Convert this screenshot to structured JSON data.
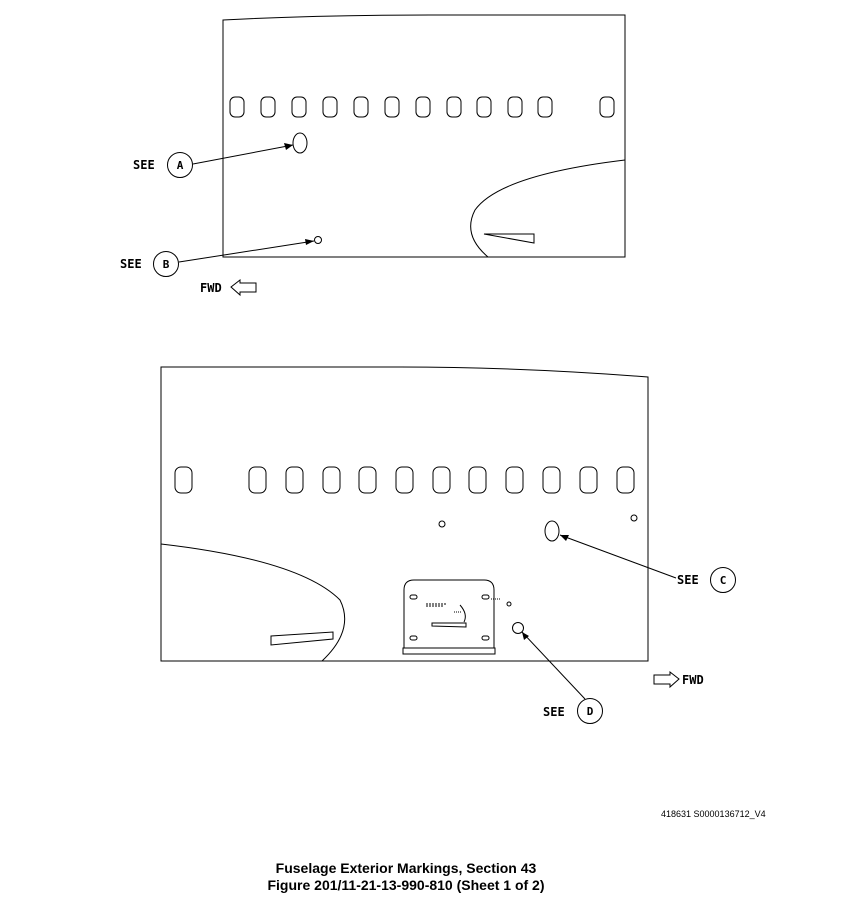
{
  "callouts": [
    {
      "see": "SEE",
      "letter": "A"
    },
    {
      "see": "SEE",
      "letter": "B"
    },
    {
      "see": "SEE",
      "letter": "C"
    },
    {
      "see": "SEE",
      "letter": "D"
    }
  ],
  "direction": {
    "top": "FWD",
    "bottom": "FWD"
  },
  "document_number": "418631 S0000136712_V4",
  "caption": {
    "line1": "Fuselage Exterior Markings, Section 43",
    "line2": "Figure 201/11-21-13-990-810  (Sheet 1 of 2)"
  }
}
